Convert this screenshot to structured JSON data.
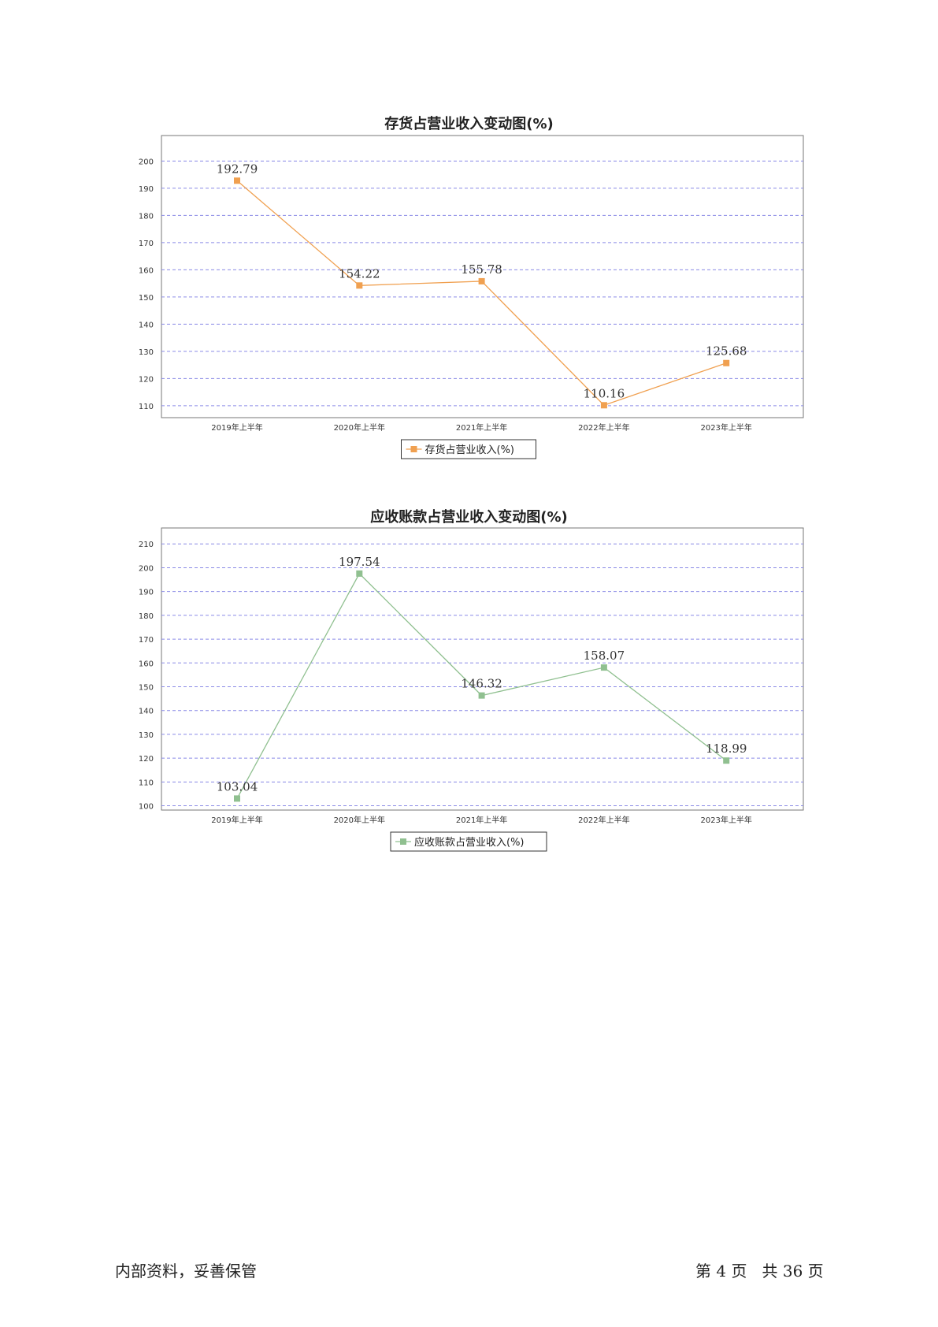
{
  "chart_data": [
    {
      "type": "line",
      "title": "存货占营业收入变动图(%)",
      "categories": [
        "2019年上半年",
        "2020年上半年",
        "2021年上半年",
        "2022年上半年",
        "2023年上半年"
      ],
      "series": [
        {
          "name": "存货占营业收入(%)",
          "values": [
            192.79,
            154.22,
            155.78,
            110.16,
            125.68
          ],
          "labels": [
            "192.79",
            "154.22",
            "155.78",
            "110.16",
            "125.68"
          ],
          "color": "#f0a050"
        }
      ],
      "yticks": [
        110,
        120,
        130,
        140,
        150,
        160,
        170,
        180,
        190,
        200
      ],
      "ylim": [
        105.6,
        209.4
      ],
      "grid": true,
      "grid_color": "#8a8ae6",
      "legend_position": "bottom-center"
    },
    {
      "type": "line",
      "title": "应收账款占营业收入变动图(%)",
      "categories": [
        "2019年上半年",
        "2020年上半年",
        "2021年上半年",
        "2022年上半年",
        "2023年上半年"
      ],
      "series": [
        {
          "name": "应收账款占营业收入(%)",
          "values": [
            103.04,
            197.54,
            146.32,
            158.07,
            118.99
          ],
          "labels": [
            "103.04",
            "197.54",
            "146.32",
            "158.07",
            "118.99"
          ],
          "color": "#90c090"
        }
      ],
      "yticks": [
        100,
        110,
        120,
        130,
        140,
        150,
        160,
        170,
        180,
        190,
        200,
        210
      ],
      "ylim": [
        98.2,
        216.7
      ],
      "grid": true,
      "grid_color": "#8a8ae6",
      "legend_position": "bottom-center"
    }
  ],
  "footer": {
    "left": "内部资料，妥善保管",
    "right": "第 4 页   共 36 页"
  }
}
